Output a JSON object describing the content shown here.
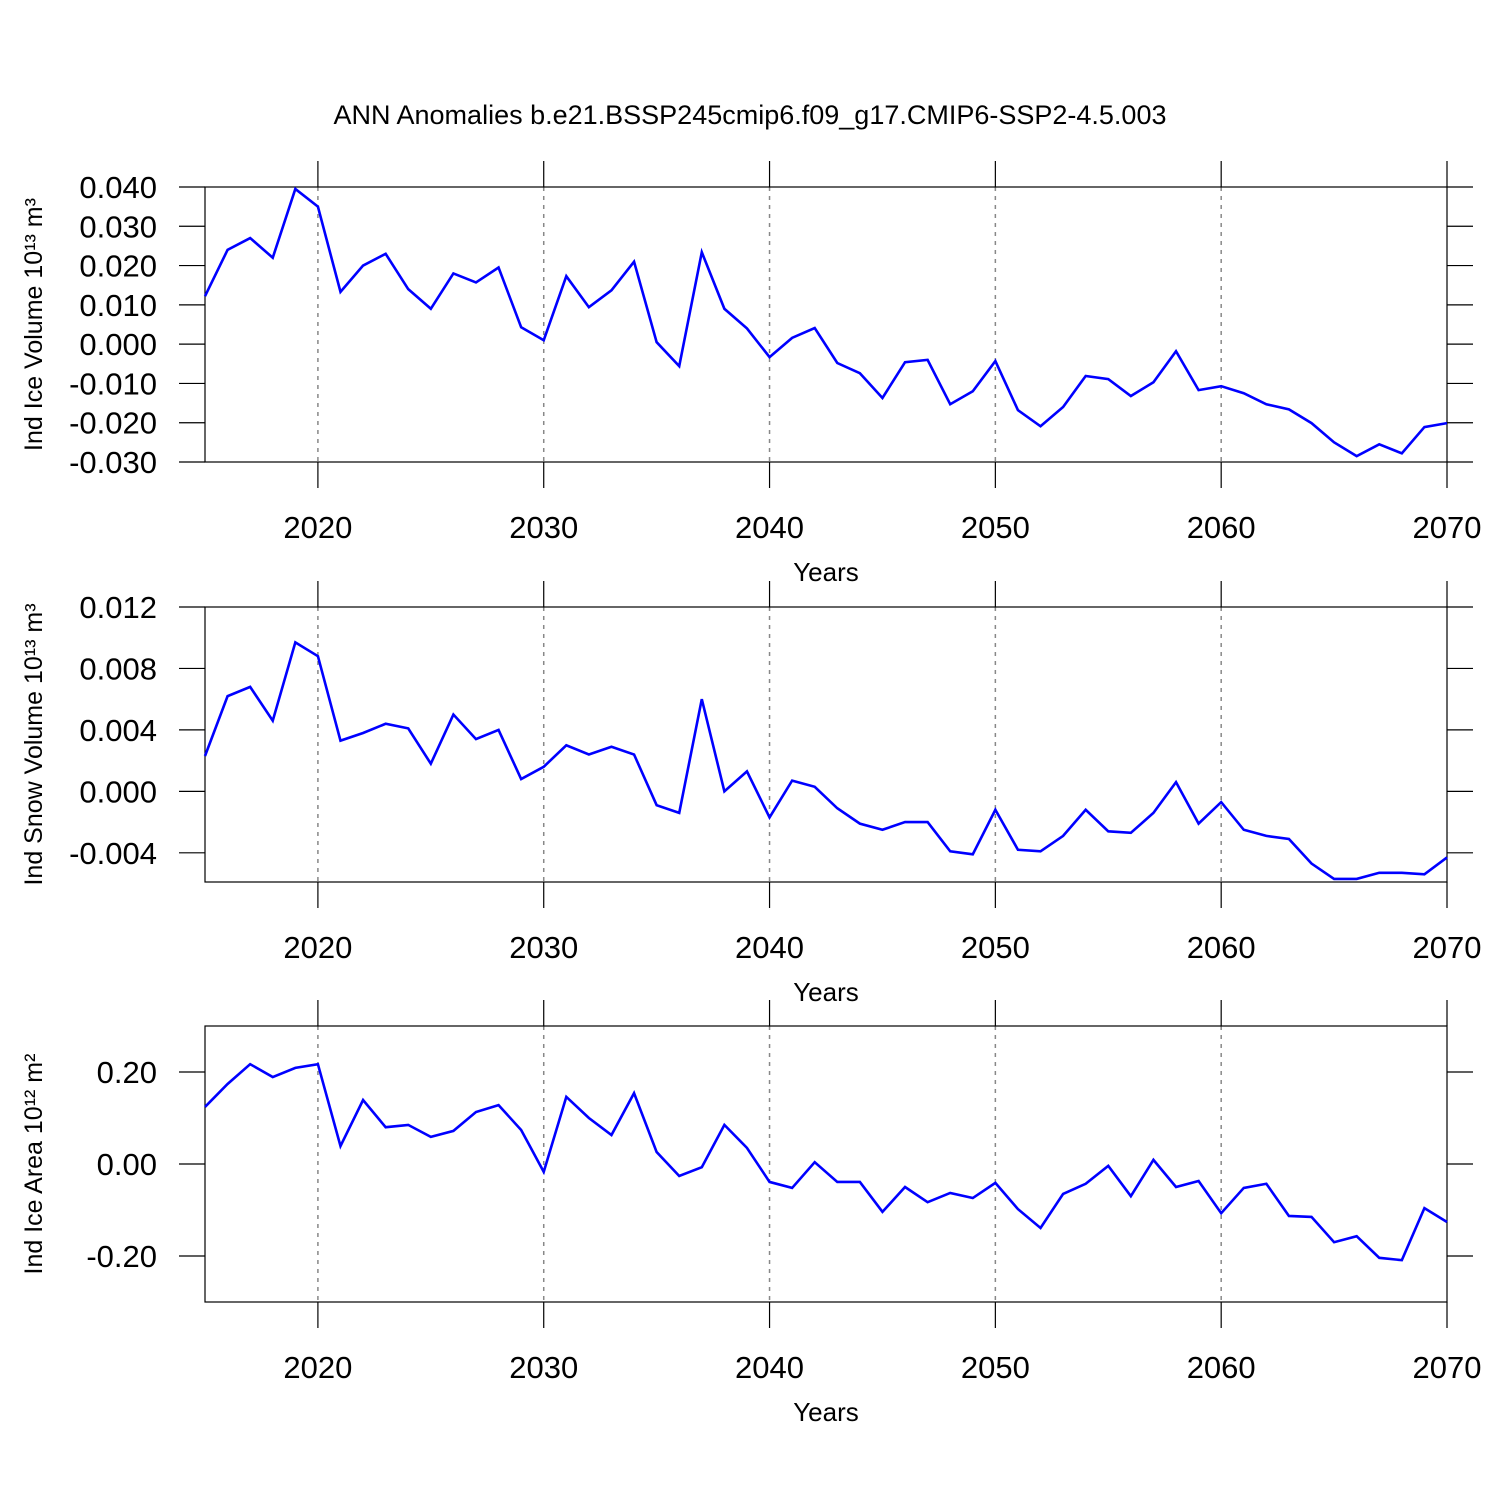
{
  "title": "ANN Anomalies b.e21.BSSP245cmip6.f09_g17.CMIP6-SSP2-4.5.003",
  "chart_data": [
    {
      "type": "line",
      "ylabel": "Ind Ice Volume 10¹³ m³",
      "xlabel": "Years",
      "color": "#0000ff",
      "grid": true,
      "x": [
        2015,
        2016,
        2017,
        2018,
        2019,
        2020,
        2021,
        2022,
        2023,
        2024,
        2025,
        2026,
        2027,
        2028,
        2029,
        2030,
        2031,
        2032,
        2033,
        2034,
        2035,
        2036,
        2037,
        2038,
        2039,
        2040,
        2041,
        2042,
        2043,
        2044,
        2045,
        2046,
        2047,
        2048,
        2049,
        2050,
        2051,
        2052,
        2053,
        2054,
        2055,
        2056,
        2057,
        2058,
        2059,
        2060,
        2061,
        2062,
        2063,
        2064,
        2065,
        2066,
        2067,
        2068,
        2069,
        2070
      ],
      "values": [
        0.0122,
        0.024,
        0.027,
        0.022,
        0.0395,
        0.035,
        0.0133,
        0.02,
        0.023,
        0.014,
        0.009,
        0.018,
        0.0157,
        0.0195,
        0.0043,
        0.001,
        0.0173,
        0.0094,
        0.0137,
        0.021,
        0.0005,
        -0.0056,
        0.0234,
        0.009,
        0.004,
        -0.0033,
        0.0016,
        0.0041,
        -0.0048,
        -0.0074,
        -0.0137,
        -0.0046,
        -0.004,
        -0.0153,
        -0.012,
        -0.0043,
        -0.0168,
        -0.0209,
        -0.016,
        -0.0081,
        -0.0089,
        -0.0132,
        -0.0097,
        -0.0018,
        -0.0117,
        -0.0107,
        -0.0125,
        -0.0153,
        -0.0166,
        -0.0201,
        -0.025,
        -0.0285,
        -0.0255,
        -0.0278,
        -0.0211,
        -0.0201
      ],
      "xlim": [
        2015,
        2070
      ],
      "xticks": [
        2020,
        2030,
        2040,
        2050,
        2060,
        2070
      ],
      "ylim": [
        -0.03,
        0.04
      ],
      "yticks": [
        {
          "value": -0.03,
          "label": "-0.030"
        },
        {
          "value": -0.02,
          "label": "-0.020"
        },
        {
          "value": -0.01,
          "label": "-0.010"
        },
        {
          "value": 0,
          "label": "0.000"
        },
        {
          "value": 0.01,
          "label": "0.010"
        },
        {
          "value": 0.02,
          "label": "0.020"
        },
        {
          "value": 0.03,
          "label": "0.030"
        },
        {
          "value": 0.04,
          "label": "0.040"
        }
      ]
    },
    {
      "type": "line",
      "ylabel": "Ind Snow Volume 10¹³ m³",
      "xlabel": "Years",
      "color": "#0000ff",
      "grid": true,
      "x": [
        2015,
        2016,
        2017,
        2018,
        2019,
        2020,
        2021,
        2022,
        2023,
        2024,
        2025,
        2026,
        2027,
        2028,
        2029,
        2030,
        2031,
        2032,
        2033,
        2034,
        2035,
        2036,
        2037,
        2038,
        2039,
        2040,
        2041,
        2042,
        2043,
        2044,
        2045,
        2046,
        2047,
        2048,
        2049,
        2050,
        2051,
        2052,
        2053,
        2054,
        2055,
        2056,
        2057,
        2058,
        2059,
        2060,
        2061,
        2062,
        2063,
        2064,
        2065,
        2066,
        2067,
        2068,
        2069,
        2070
      ],
      "values": [
        0.0023,
        0.0062,
        0.0068,
        0.0046,
        0.0097,
        0.0088,
        0.0033,
        0.0038,
        0.0044,
        0.0041,
        0.0018,
        0.005,
        0.0034,
        0.004,
        0.0008,
        0.0016,
        0.003,
        0.0024,
        0.0029,
        0.0024,
        -0.0009,
        -0.0014,
        0.006,
        0.0,
        0.0013,
        -0.0017,
        0.0007,
        0.0003,
        -0.0011,
        -0.0021,
        -0.0025,
        -0.002,
        -0.002,
        -0.0039,
        -0.0041,
        -0.0012,
        -0.0038,
        -0.0039,
        -0.0029,
        -0.0012,
        -0.0026,
        -0.0027,
        -0.0014,
        0.0006,
        -0.0021,
        -0.0007,
        -0.0025,
        -0.0029,
        -0.0031,
        -0.0047,
        -0.0057,
        -0.0057,
        -0.0053,
        -0.0053,
        -0.0054,
        -0.0043
      ],
      "xlim": [
        2015,
        2070
      ],
      "xticks": [
        2020,
        2030,
        2040,
        2050,
        2060,
        2070
      ],
      "ylim": [
        -0.0059,
        0.012
      ],
      "yticks": [
        -0.004,
        {
          "value": 0,
          "label": "0.000"
        },
        0.004,
        0.008,
        0.012
      ]
    },
    {
      "type": "line",
      "ylabel": "Ind Ice Area 10¹² m²",
      "xlabel": "Years",
      "color": "#0000ff",
      "grid": true,
      "x": [
        2015,
        2016,
        2017,
        2018,
        2019,
        2020,
        2021,
        2022,
        2023,
        2024,
        2025,
        2026,
        2027,
        2028,
        2029,
        2030,
        2031,
        2032,
        2033,
        2034,
        2035,
        2036,
        2037,
        2038,
        2039,
        2040,
        2041,
        2042,
        2043,
        2044,
        2045,
        2046,
        2047,
        2048,
        2049,
        2050,
        2051,
        2052,
        2053,
        2054,
        2055,
        2056,
        2057,
        2058,
        2059,
        2060,
        2061,
        2062,
        2063,
        2064,
        2065,
        2066,
        2067,
        2068,
        2069,
        2070
      ],
      "values": [
        0.124,
        0.174,
        0.217,
        0.189,
        0.209,
        0.217,
        0.039,
        0.139,
        0.08,
        0.085,
        0.059,
        0.072,
        0.113,
        0.128,
        0.074,
        -0.017,
        0.146,
        0.1,
        0.063,
        0.154,
        0.026,
        -0.026,
        -0.007,
        0.085,
        0.035,
        -0.039,
        -0.052,
        0.004,
        -0.039,
        -0.039,
        -0.104,
        -0.05,
        -0.083,
        -0.063,
        -0.074,
        -0.041,
        -0.098,
        -0.139,
        -0.065,
        -0.043,
        -0.004,
        -0.07,
        0.009,
        -0.05,
        -0.037,
        -0.107,
        -0.052,
        -0.043,
        -0.113,
        -0.115,
        -0.17,
        -0.157,
        -0.204,
        -0.209,
        -0.096,
        -0.126
      ],
      "xlim": [
        2015,
        2070
      ],
      "xticks": [
        2020,
        2030,
        2040,
        2050,
        2060,
        2070
      ],
      "ylim": [
        -0.3,
        0.3
      ],
      "yticks": [
        {
          "value": -0.2,
          "label": "-0.20"
        },
        {
          "value": 0,
          "label": "0.00"
        },
        {
          "value": 0.2,
          "label": "0.20"
        }
      ]
    }
  ]
}
